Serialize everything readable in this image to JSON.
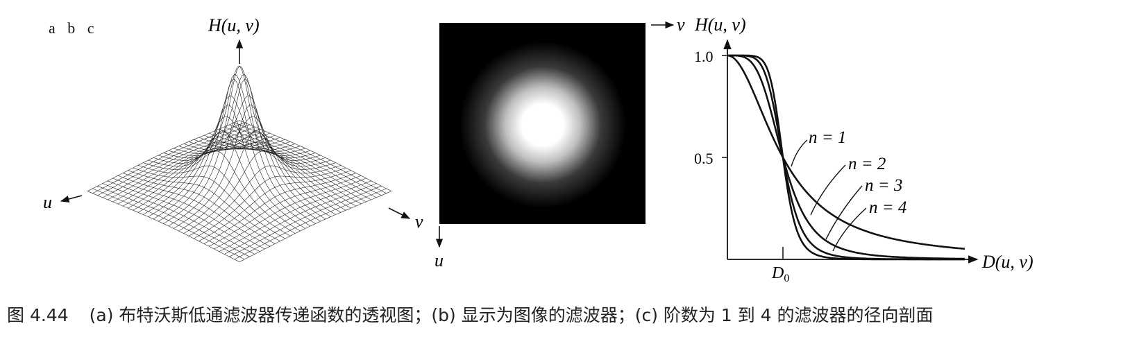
{
  "panel_letters": "a  b  c",
  "panel_a": {
    "z_label": "H(u, v)",
    "u_label": "u",
    "v_label": "v"
  },
  "panel_b": {
    "v_label": "v",
    "u_label": "u"
  },
  "panel_c": {
    "y_label": "H(u, v)",
    "x_label": "D(u, v)",
    "d0_label": "D",
    "d0_sub": "0",
    "y_ticks": [
      "1.0",
      "0.5"
    ],
    "curve_labels": [
      "n = 1",
      "n = 2",
      "n = 3",
      "n = 4"
    ]
  },
  "chart_data": {
    "type": "line",
    "title": "",
    "xlabel": "D(u, v)",
    "ylabel": "H(u, v)",
    "ylim": [
      0,
      1
    ],
    "x_marker": "D0",
    "series": [
      {
        "name": "n = 1",
        "order": 1
      },
      {
        "name": "n = 2",
        "order": 2
      },
      {
        "name": "n = 3",
        "order": 3
      },
      {
        "name": "n = 4",
        "order": 4
      }
    ]
  },
  "caption": {
    "number": "图 4.44",
    "text": "(a) 布特沃斯低通滤波器传递函数的透视图；(b) 显示为图像的滤波器；(c) 阶数为 1 到 4 的滤波器的径向剖面"
  }
}
